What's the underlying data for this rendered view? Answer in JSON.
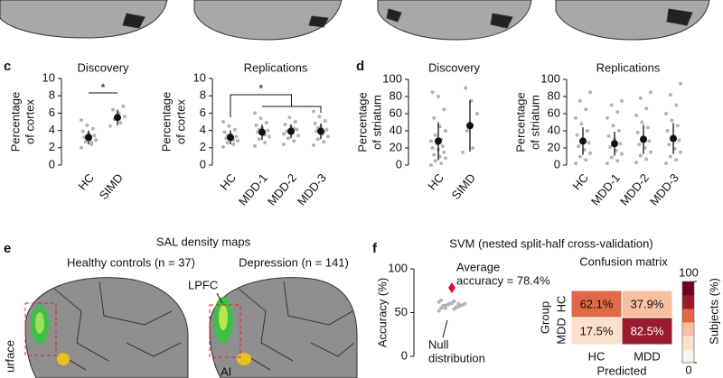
{
  "figure": {
    "panel_c": "c",
    "panel_d": "d",
    "panel_e": "e",
    "panel_f": "f",
    "e": {
      "title": "SAL density maps",
      "left": "Healthy controls (n = 37)",
      "right": "Depression (n = 141)",
      "lpfc": "LPFC",
      "ai": "AI",
      "surface": "urface"
    },
    "f_title": "SVM (nested split-half cross-validation)"
  },
  "chart_data": [
    {
      "type": "dotplot",
      "title": "Discovery",
      "ylabel": [
        "Percentage",
        "of cortex"
      ],
      "categories": [
        "HC",
        "SIMD"
      ],
      "values": [
        3.2,
        5.5
      ],
      "errors": [
        0.8,
        0.9
      ],
      "points": [
        [
          2.0,
          2.4,
          2.7,
          2.9,
          3.0,
          3.2,
          3.4,
          3.6,
          3.9,
          4.2,
          4.6,
          5.2,
          2.6,
          3.3
        ],
        [
          4.5,
          4.9,
          5.3,
          5.6,
          6.0,
          6.4,
          6.8
        ]
      ],
      "ylim": [
        0,
        10
      ],
      "yticks": [
        0,
        2,
        4,
        6,
        8,
        10
      ],
      "significance": "*"
    },
    {
      "type": "dotplot",
      "title": "Replications",
      "ylabel": [
        "Percentage",
        "of cortex"
      ],
      "categories": [
        "HC",
        "MDD-1",
        "MDD-2",
        "MDD-3"
      ],
      "values": [
        3.2,
        3.8,
        3.9,
        3.9
      ],
      "errors": [
        0.8,
        0.9,
        0.8,
        0.9
      ],
      "points": [
        [
          2.1,
          2.4,
          2.6,
          2.8,
          3.0,
          3.1,
          3.3,
          3.5,
          3.8,
          4.1,
          4.5,
          5.0,
          2.9,
          3.4
        ],
        [
          2.2,
          2.6,
          3.0,
          3.3,
          3.6,
          3.8,
          4.0,
          4.3,
          4.6,
          4.9,
          5.4,
          6.0,
          3.5,
          4.1
        ],
        [
          2.4,
          2.8,
          3.1,
          3.4,
          3.7,
          3.9,
          4.1,
          4.4,
          4.7,
          5.0,
          5.5,
          3.6,
          4.2
        ],
        [
          2.3,
          2.7,
          3.0,
          3.3,
          3.6,
          3.9,
          4.1,
          4.4,
          4.8,
          5.1,
          5.6,
          6.2,
          3.8,
          4.3
        ]
      ],
      "ylim": [
        0,
        10
      ],
      "yticks": [
        0,
        2,
        4,
        6,
        8,
        10
      ],
      "significance": "*"
    },
    {
      "type": "dotplot",
      "title": "Discovery",
      "ylabel": [
        "Percentage",
        "of striatum"
      ],
      "categories": [
        "HC",
        "SIMD"
      ],
      "values": [
        28,
        46
      ],
      "errors": [
        22,
        30
      ],
      "points": [
        [
          0,
          2,
          5,
          8,
          10,
          12,
          15,
          18,
          20,
          22,
          25,
          28,
          30,
          35,
          40,
          45,
          55,
          65,
          80,
          85
        ],
        [
          15,
          20,
          40,
          60,
          75,
          90
        ]
      ],
      "ylim": [
        0,
        100
      ],
      "yticks": [
        0,
        20,
        40,
        60,
        80,
        100
      ]
    },
    {
      "type": "dotplot",
      "title": "Replications",
      "ylabel": [
        "Percentage",
        "of striatum"
      ],
      "categories": [
        "HC",
        "MDD-1",
        "MDD-2",
        "MDD-3"
      ],
      "values": [
        28,
        25,
        30,
        31
      ],
      "errors": [
        16,
        14,
        17,
        18
      ],
      "points": [
        [
          2,
          6,
          10,
          14,
          18,
          22,
          26,
          30,
          35,
          40,
          48,
          55,
          65,
          75,
          85
        ],
        [
          2,
          5,
          9,
          13,
          17,
          21,
          25,
          30,
          34,
          40,
          46,
          55,
          62,
          70,
          75
        ],
        [
          3,
          7,
          11,
          15,
          20,
          24,
          28,
          33,
          38,
          44,
          50,
          58,
          66,
          78,
          85
        ],
        [
          2,
          6,
          10,
          15,
          19,
          24,
          29,
          34,
          40,
          46,
          52,
          60,
          70,
          82,
          95
        ]
      ],
      "ylim": [
        0,
        100
      ],
      "yticks": [
        0,
        20,
        40,
        60,
        80,
        100
      ]
    },
    {
      "type": "strip",
      "ylabel": "Accuracy (%)",
      "ylim": [
        0,
        100
      ],
      "yticks": [
        0,
        50,
        100
      ],
      "average": 78.4,
      "average_label": [
        "Average",
        "accuracy = 78.4%"
      ],
      "average_color": "#e0102a",
      "null": [
        52,
        54,
        55,
        56,
        57,
        57,
        58,
        58,
        59,
        59,
        60,
        60,
        61,
        62,
        63,
        64,
        56,
        58,
        60,
        55
      ],
      "null_label": [
        "Null",
        "distribution"
      ]
    },
    {
      "type": "heatmap",
      "title": "Confusion matrix",
      "rows": [
        "HC",
        "MDD"
      ],
      "columns": [
        "HC",
        "MDD"
      ],
      "values": [
        [
          62.1,
          37.9
        ],
        [
          17.5,
          82.5
        ]
      ],
      "value_labels": [
        [
          "62.1%",
          "37.9%"
        ],
        [
          "17.5%",
          "82.5%"
        ]
      ],
      "ylabel": "Group",
      "xlabel": "Predicted",
      "colorbar_label": "Subjects (%)",
      "clim": [
        0,
        100
      ],
      "cticks": [
        0,
        100
      ],
      "colors": [
        "#fff0e8",
        "#fde0cc",
        "#f8c0a0",
        "#e06a48",
        "#9a1c2c",
        "#6e0020"
      ]
    }
  ]
}
